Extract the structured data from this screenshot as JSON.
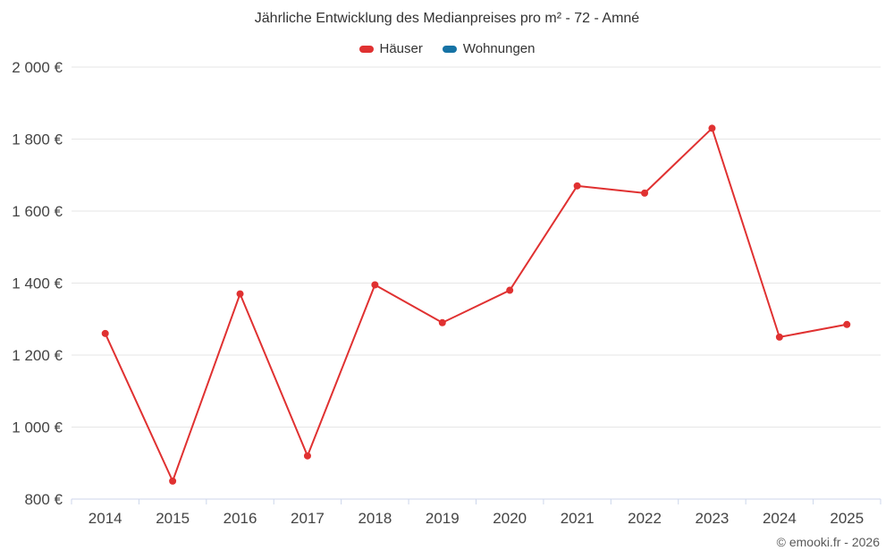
{
  "chart_data": {
    "type": "line",
    "title": "Jährliche Entwicklung des Medianpreises pro m² - 72 - Amné",
    "categories": [
      "2014",
      "2015",
      "2016",
      "2017",
      "2018",
      "2019",
      "2020",
      "2021",
      "2022",
      "2023",
      "2024",
      "2025"
    ],
    "series": [
      {
        "name": "Häuser",
        "color": "#e03131",
        "values": [
          1260,
          850,
          1370,
          920,
          1395,
          1290,
          1380,
          1670,
          1650,
          1830,
          1250,
          1285
        ]
      },
      {
        "name": "Wohnungen",
        "color": "#1673a5",
        "values": []
      }
    ],
    "xlabel": "",
    "ylabel": "",
    "ylim": [
      800,
      2000
    ],
    "yticks": [
      800,
      1000,
      1200,
      1400,
      1600,
      1800,
      2000
    ],
    "ytick_labels": [
      "800 €",
      "1 000 €",
      "1 200 €",
      "1 400 €",
      "1 600 €",
      "1 800 €",
      "2 000 €"
    ],
    "grid": true,
    "legend_position": "top"
  },
  "attribution": "© emooki.fr - 2026"
}
